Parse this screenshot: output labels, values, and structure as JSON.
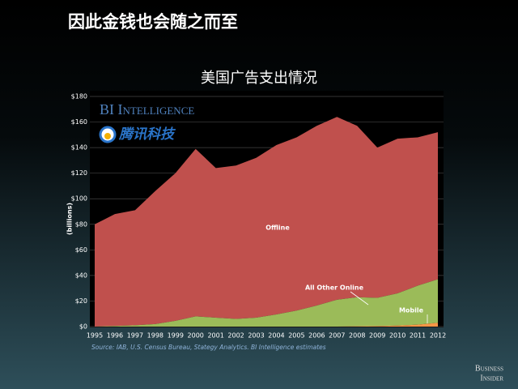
{
  "slide_title": "因此金钱也会随之而至",
  "brand": [
    "Business",
    "Insider"
  ],
  "chart_data": {
    "type": "stacked_area",
    "title": "美国广告支出情况",
    "watermarks": [
      "BI Intelligence",
      "腾讯科技"
    ],
    "y_label": "(billions)",
    "source": "Source: IAB, U.S. Census Bureau, Stategy Analytics. BI Intelligence estimates",
    "categories": [
      "1995",
      "1996",
      "1997",
      "1998",
      "1999",
      "2000",
      "2001",
      "2002",
      "2003",
      "2004",
      "2005",
      "2006",
      "2007",
      "2008",
      "2009",
      "2010",
      "2011",
      "2012"
    ],
    "series": [
      {
        "name": "Mobile",
        "color": "#f79646",
        "values": [
          0,
          0,
          0,
          0,
          0,
          0,
          0,
          0,
          0,
          0,
          0,
          0,
          0,
          0.2,
          0.4,
          0.8,
          1.5,
          3
        ]
      },
      {
        "name": "All Other Online",
        "color": "#9bbb59",
        "values": [
          0,
          0.5,
          1,
          2,
          4.5,
          8,
          7,
          6,
          7,
          9.5,
          12.5,
          16.5,
          21,
          22.8,
          22.1,
          25.2,
          30.5,
          34
        ]
      },
      {
        "name": "Offline",
        "color": "#c0504d",
        "values": [
          80,
          87.5,
          90,
          104,
          115.5,
          131,
          117,
          120,
          125,
          132.5,
          135.5,
          140.5,
          143,
          134,
          117.5,
          121,
          116,
          115
        ]
      }
    ],
    "ylim": [
      0,
      180
    ],
    "yticks": [
      {
        "value": 0,
        "label": "$0"
      },
      {
        "value": 20,
        "label": "$20"
      },
      {
        "value": 40,
        "label": "$40"
      },
      {
        "value": 60,
        "label": "$60"
      },
      {
        "value": 80,
        "label": "$80"
      },
      {
        "value": 100,
        "label": "$100"
      },
      {
        "value": 120,
        "label": "$120"
      },
      {
        "value": 140,
        "label": "$140"
      },
      {
        "value": 160,
        "label": "$160"
      },
      {
        "value": 180,
        "label": "$180"
      }
    ],
    "grid": true
  }
}
